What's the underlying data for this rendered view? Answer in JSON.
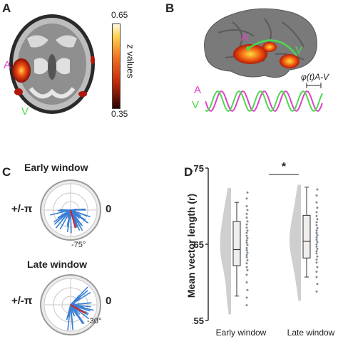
{
  "panels": {
    "a": {
      "letter": "A",
      "label_a": "A",
      "label_v": "V",
      "colorbar": {
        "max_label": "0.65",
        "min_label": "0.35",
        "title": "z values"
      }
    },
    "b": {
      "letter": "B",
      "label_a": "A",
      "label_v": "V",
      "wave_a_label": "A",
      "wave_v_label": "V",
      "phase_label": "φ(t)A-V"
    },
    "c": {
      "letter": "C",
      "early": {
        "title": "Early window",
        "left_label": "+/-π",
        "right_label": "0",
        "mean_angle_label": "-75°"
      },
      "late": {
        "title": "Late window",
        "left_label": "+/-π",
        "right_label": "0",
        "mean_angle_label": "-30°"
      }
    },
    "d": {
      "letter": "D",
      "significance": "*"
    }
  },
  "colors": {
    "auditory_magenta": "#e040c8",
    "visual_green": "#4cd94c",
    "polar_blue": "#3a7fd5",
    "mean_red": "#d62020",
    "violin_gray": "#cfcfcf"
  },
  "chart_data": {
    "type": "box",
    "title": "",
    "ylabel": "Mean vector length (r)",
    "xlabel": "",
    "ylim": [
      0.55,
      0.75
    ],
    "yticks": [
      "0.55",
      "0.65",
      "0.75"
    ],
    "categories": [
      "Early window",
      "Late window"
    ],
    "series": [
      {
        "name": "Early window",
        "box": {
          "min": 0.582,
          "q1": 0.622,
          "median": 0.643,
          "q3": 0.68,
          "max": 0.705
        },
        "points": [
          0.718,
          0.71,
          0.7,
          0.695,
          0.69,
          0.685,
          0.68,
          0.676,
          0.672,
          0.668,
          0.665,
          0.661,
          0.658,
          0.655,
          0.652,
          0.649,
          0.645,
          0.642,
          0.639,
          0.636,
          0.633,
          0.629,
          0.625,
          0.62,
          0.616,
          0.61,
          0.6,
          0.59,
          0.58,
          0.57
        ]
      },
      {
        "name": "Late window",
        "box": {
          "min": 0.607,
          "q1": 0.632,
          "median": 0.654,
          "q3": 0.688,
          "max": 0.725
        },
        "points": [
          0.722,
          0.714,
          0.705,
          0.698,
          0.692,
          0.687,
          0.683,
          0.679,
          0.675,
          0.671,
          0.668,
          0.665,
          0.662,
          0.659,
          0.656,
          0.653,
          0.65,
          0.647,
          0.644,
          0.641,
          0.638,
          0.634,
          0.63,
          0.626,
          0.62,
          0.614,
          0.607,
          0.598,
          0.588
        ]
      }
    ]
  }
}
